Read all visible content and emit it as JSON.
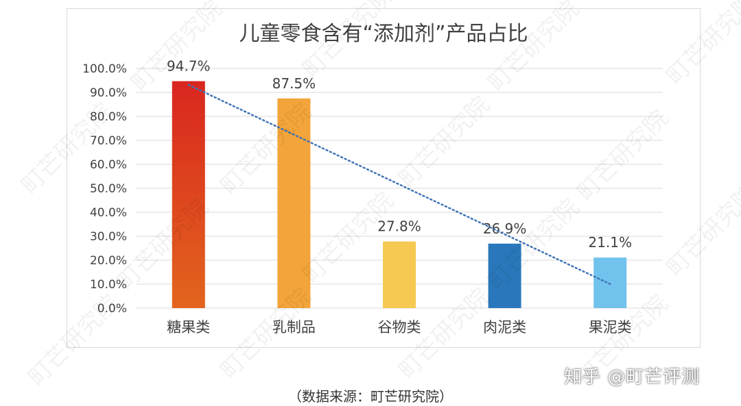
{
  "title": "儿童零食含有“添加剂”产品占比",
  "source_note": "（数据来源：町芒研究院）",
  "brand_watermark": "知乎 @町芒评测",
  "bg_watermark": "町芒研究院",
  "chart_data": {
    "type": "bar",
    "title": "儿童零食含有“添加剂”产品占比",
    "categories": [
      "糖果类",
      "乳制品",
      "谷物类",
      "肉泥类",
      "果泥类"
    ],
    "values": [
      94.7,
      87.5,
      27.8,
      26.9,
      21.1
    ],
    "data_labels": [
      "94.7%",
      "87.5%",
      "27.8%",
      "26.9%",
      "21.1%"
    ],
    "ylim": [
      0,
      100
    ],
    "yticks": [
      "0.0%",
      "10.0%",
      "20.0%",
      "30.0%",
      "40.0%",
      "50.0%",
      "60.0%",
      "70.0%",
      "80.0%",
      "90.0%",
      "100.0%"
    ],
    "bar_colors": [
      [
        "#d9261f",
        "#e2651d"
      ],
      [
        "#f3a43a",
        "#f3a43a"
      ],
      [
        "#f5c952",
        "#f5c952"
      ],
      [
        "#2a78bb",
        "#2a78bb"
      ],
      [
        "#71c2ec",
        "#71c2ec"
      ]
    ],
    "trendline": {
      "type": "linear",
      "style": "dotted",
      "color": "#3f73b5"
    },
    "grid": true
  }
}
